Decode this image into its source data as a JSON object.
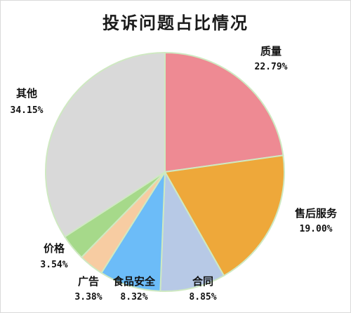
{
  "chart_data": {
    "type": "pie",
    "title": "投诉问题占比情况",
    "slices": [
      {
        "label": "质量",
        "value": 22.79,
        "display": "22.79%",
        "color": "#ee8a93"
      },
      {
        "label": "售后服务",
        "value": 19.0,
        "display": "19.00%",
        "color": "#eea83a"
      },
      {
        "label": "合同",
        "value": 8.85,
        "display": "8.85%",
        "color": "#b7c9e6"
      },
      {
        "label": "食品安全",
        "value": 8.32,
        "display": "8.32%",
        "color": "#6cbcf8"
      },
      {
        "label": "广告",
        "value": 3.38,
        "display": "3.38%",
        "color": "#f7cca2"
      },
      {
        "label": "价格",
        "value": 3.54,
        "display": "3.54%",
        "color": "#a6d98a"
      },
      {
        "label": "其他",
        "value": 34.15,
        "display": "34.15%",
        "color": "#d9d9d9"
      }
    ],
    "slice_border_color": "#cfe9c2",
    "start_angle": "12 o'clock",
    "direction": "clockwise"
  }
}
